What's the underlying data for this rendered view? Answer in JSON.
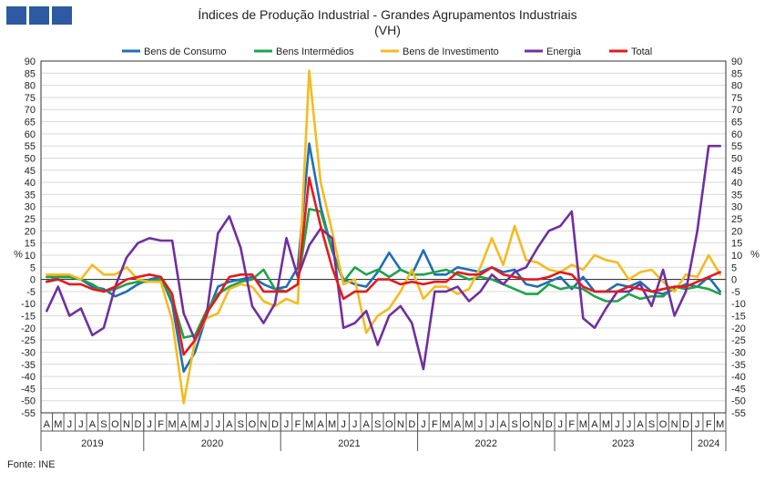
{
  "header": {
    "title": "Índices de Produção Industrial - Grandes Agrupamentos Industriais",
    "subtitle": "(VH)"
  },
  "footer": {
    "source": "Fonte: INE"
  },
  "chart_data": {
    "type": "line",
    "title": "Índices de Produção Industrial - Grandes Agrupamentos Industriais",
    "subtitle": "(VH)",
    "ylabel_left": "%",
    "ylabel_right": "%",
    "ylim": [
      -55,
      90
    ],
    "yticks": [
      90,
      85,
      80,
      75,
      70,
      65,
      60,
      55,
      50,
      45,
      40,
      35,
      30,
      25,
      20,
      15,
      10,
      5,
      0,
      -5,
      -10,
      -15,
      -20,
      -25,
      -30,
      -35,
      -40,
      -45,
      -50,
      -55
    ],
    "grid": true,
    "legend": "top",
    "months": [
      "A",
      "M",
      "J",
      "J",
      "A",
      "S",
      "O",
      "N",
      "D",
      "J",
      "F",
      "M",
      "A",
      "M",
      "J",
      "J",
      "A",
      "S",
      "O",
      "N",
      "D",
      "J",
      "F",
      "M",
      "A",
      "M",
      "J",
      "J",
      "A",
      "S",
      "O",
      "N",
      "D",
      "J",
      "F",
      "M",
      "A",
      "M",
      "J",
      "J",
      "A",
      "S",
      "O",
      "N",
      "D",
      "J",
      "F",
      "M",
      "A",
      "M",
      "J",
      "J",
      "A",
      "S",
      "O",
      "N",
      "D",
      "J",
      "F",
      "M"
    ],
    "years": [
      {
        "label": "2019",
        "start": 0,
        "count": 9
      },
      {
        "label": "2020",
        "start": 9,
        "count": 12
      },
      {
        "label": "2021",
        "start": 21,
        "count": 12
      },
      {
        "label": "2022",
        "start": 33,
        "count": 12
      },
      {
        "label": "2023",
        "start": 45,
        "count": 12
      },
      {
        "label": "2024",
        "start": 57,
        "count": 3
      }
    ],
    "series": [
      {
        "name": "Bens de Consumo",
        "color": "#1f6fb5",
        "values": [
          -1,
          1,
          1,
          0,
          -3,
          -4,
          -7,
          -5,
          -2,
          0,
          1,
          -10,
          -38,
          -30,
          -15,
          -3,
          -1,
          0,
          1,
          -2,
          -4,
          -3,
          5,
          56,
          30,
          12,
          0,
          -2,
          -3,
          3,
          11,
          4,
          2,
          12,
          2,
          2,
          5,
          4,
          3,
          5,
          3,
          4,
          -2,
          -3,
          -1,
          1,
          -4,
          1,
          -5,
          -5,
          -2,
          -3,
          -1,
          -5,
          -6,
          -4,
          -2,
          -3,
          1,
          -5
        ]
      },
      {
        "name": "Bens Intermédios",
        "color": "#1fa34a",
        "values": [
          1,
          1,
          1,
          0,
          -2,
          -5,
          -4,
          -2,
          -1,
          -1,
          0,
          -8,
          -24,
          -23,
          -13,
          -6,
          -3,
          -1,
          0,
          4,
          -4,
          -5,
          -2,
          29,
          28,
          12,
          -1,
          5,
          2,
          4,
          1,
          4,
          2,
          2,
          3,
          4,
          2,
          0,
          1,
          0,
          -2,
          -4,
          -6,
          -6,
          -2,
          -4,
          -3,
          -4,
          -7,
          -9,
          -9,
          -6,
          -8,
          -7,
          -7,
          -3,
          -4,
          -3,
          -4,
          -6
        ]
      },
      {
        "name": "Bens de Investimento",
        "color": "#f5bb1e",
        "values": [
          2,
          2,
          2,
          0,
          6,
          2,
          2,
          5,
          0,
          -1,
          -1,
          -17,
          -51,
          -25,
          -16,
          -14,
          -4,
          -2,
          -3,
          -9,
          -11,
          -8,
          -10,
          86,
          40,
          20,
          -2,
          0,
          -22,
          -15,
          -12,
          -5,
          4,
          -8,
          -3,
          -3,
          -6,
          -4,
          5,
          17,
          6,
          22,
          8,
          7,
          4,
          3,
          6,
          4,
          10,
          8,
          7,
          0,
          3,
          4,
          -1,
          -5,
          2,
          1,
          10,
          2
        ]
      },
      {
        "name": "Energia",
        "color": "#7030a0",
        "values": [
          -13,
          -3,
          -15,
          -12,
          -23,
          -20,
          -3,
          9,
          15,
          17,
          16,
          16,
          -14,
          -25,
          -15,
          19,
          26,
          13,
          -11,
          -18,
          -10,
          17,
          1,
          14,
          21,
          17,
          -20,
          -18,
          -13,
          -27,
          -15,
          -11,
          -18,
          -37,
          -5,
          -5,
          -3,
          -9,
          -5,
          2,
          -2,
          3,
          5,
          13,
          20,
          22,
          28,
          -16,
          -20,
          -12,
          -5,
          -5,
          -2,
          -11,
          4,
          -15,
          -5,
          20,
          55,
          55
        ]
      },
      {
        "name": "Total",
        "color": "#e41a1c",
        "values": [
          -1,
          0,
          -2,
          -2,
          -4,
          -5,
          -3,
          0,
          1,
          2,
          1,
          -6,
          -31,
          -25,
          -14,
          -7,
          1,
          2,
          2,
          -5,
          -5,
          -5,
          -2,
          42,
          22,
          5,
          -8,
          -5,
          -5,
          0,
          0,
          -2,
          -1,
          -2,
          -1,
          -1,
          3,
          2,
          2,
          5,
          2,
          1,
          0,
          0,
          1,
          3,
          2,
          -3,
          -5,
          -5,
          -5,
          -3,
          -4,
          -5,
          -4,
          -3,
          -3,
          -1,
          1,
          3
        ]
      }
    ]
  }
}
